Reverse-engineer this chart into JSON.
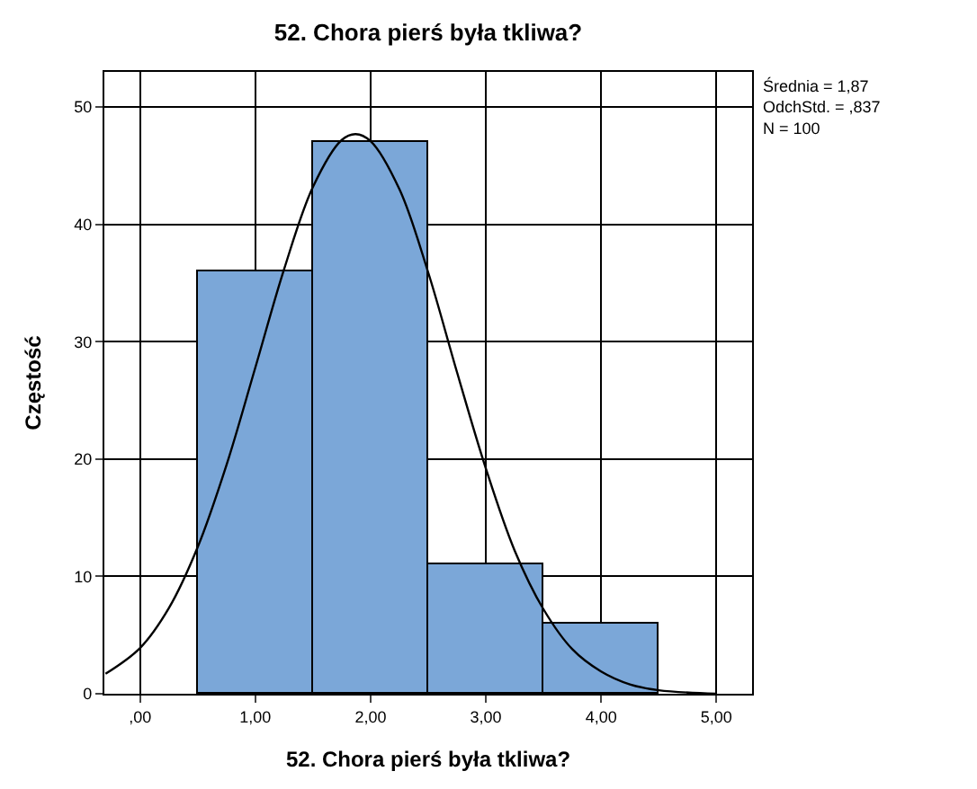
{
  "chart_data": {
    "type": "histogram",
    "title": "52. Chora pierś była tkliwa?",
    "xlabel": "52. Chora pierś była tkliwa?",
    "ylabel": "Częstość",
    "bins": [
      0.5,
      1.5,
      2.5,
      3.5,
      4.5
    ],
    "values": [
      36,
      47,
      11,
      6
    ],
    "color": "#7ba7d8",
    "series": [
      {
        "type": "line",
        "color": "#000000",
        "x": [
          -0.3,
          0,
          0.25,
          0.5,
          0.75,
          1.0,
          1.25,
          1.5,
          1.75,
          1.87,
          2.0,
          2.25,
          2.5,
          2.75,
          3.0,
          3.25,
          3.5,
          3.75,
          4.0,
          4.25,
          4.5,
          5.0
        ],
        "values": [
          1.7,
          3.9,
          7.3,
          12.5,
          19.5,
          27.8,
          36.2,
          43.2,
          47.2,
          47.7,
          47.1,
          43.0,
          35.9,
          27.4,
          19.2,
          12.2,
          7.2,
          3.8,
          1.9,
          0.8,
          0.3,
          0.0
        ]
      }
    ],
    "xlim": [
      -0.31,
      5.31
    ],
    "ylim": [
      0,
      53
    ],
    "xticks": [
      {
        "value": 0,
        "label": ",00"
      },
      {
        "value": 1,
        "label": "1,00"
      },
      {
        "value": 2,
        "label": "2,00"
      },
      {
        "value": 3,
        "label": "3,00"
      },
      {
        "value": 4,
        "label": "4,00"
      },
      {
        "value": 5,
        "label": "5,00"
      }
    ],
    "yticks": [
      0,
      10,
      20,
      30,
      40,
      50
    ],
    "grid": true,
    "annotations": [
      "Średnia = 1,87",
      "OdchStd. = ,837",
      "N = 100"
    ]
  }
}
